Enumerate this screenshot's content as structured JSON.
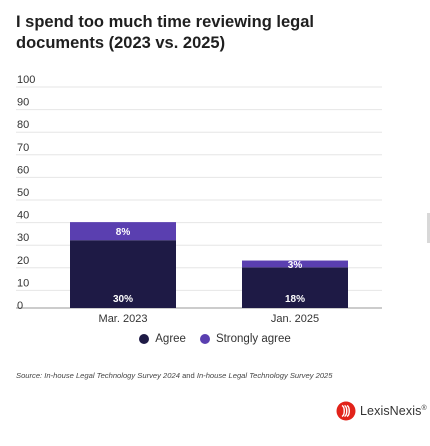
{
  "title": "I spend too much time reviewing legal documents (2023 vs. 2025)",
  "colors": {
    "agree": "#1e1a45",
    "strongly_agree": "#5a3fb0",
    "grid": "#e6e6e6",
    "brand": "#e2231a"
  },
  "chart_data": {
    "type": "bar",
    "stacked": true,
    "categories": [
      "Mar. 2023",
      "Jan. 2025"
    ],
    "series": [
      {
        "name": "Agree",
        "values": [
          30,
          18
        ],
        "labels": [
          "30%",
          "18%"
        ]
      },
      {
        "name": "Strongly agree",
        "values": [
          8,
          3
        ],
        "labels": [
          "8%",
          "3%"
        ]
      }
    ],
    "yticks": [
      "0",
      "10",
      "20",
      "30",
      "40",
      "50",
      "60",
      "70",
      "80",
      "90",
      "100"
    ],
    "ylim": [
      0,
      100
    ],
    "grid": true,
    "legend": "bottom-center"
  },
  "legend": {
    "agree_label": "Agree",
    "strongly_label": "Strongly agree"
  },
  "source": {
    "prefix": "Source: ",
    "survey_2024": "In-house Legal Technology Survey 2024",
    "connector": " and ",
    "survey_2025": "In-house Legal Technology Survey 2025"
  },
  "brand": {
    "name": "LexisNexis",
    "mark": "®",
    "icon": "lexisnexis-logo-icon"
  }
}
